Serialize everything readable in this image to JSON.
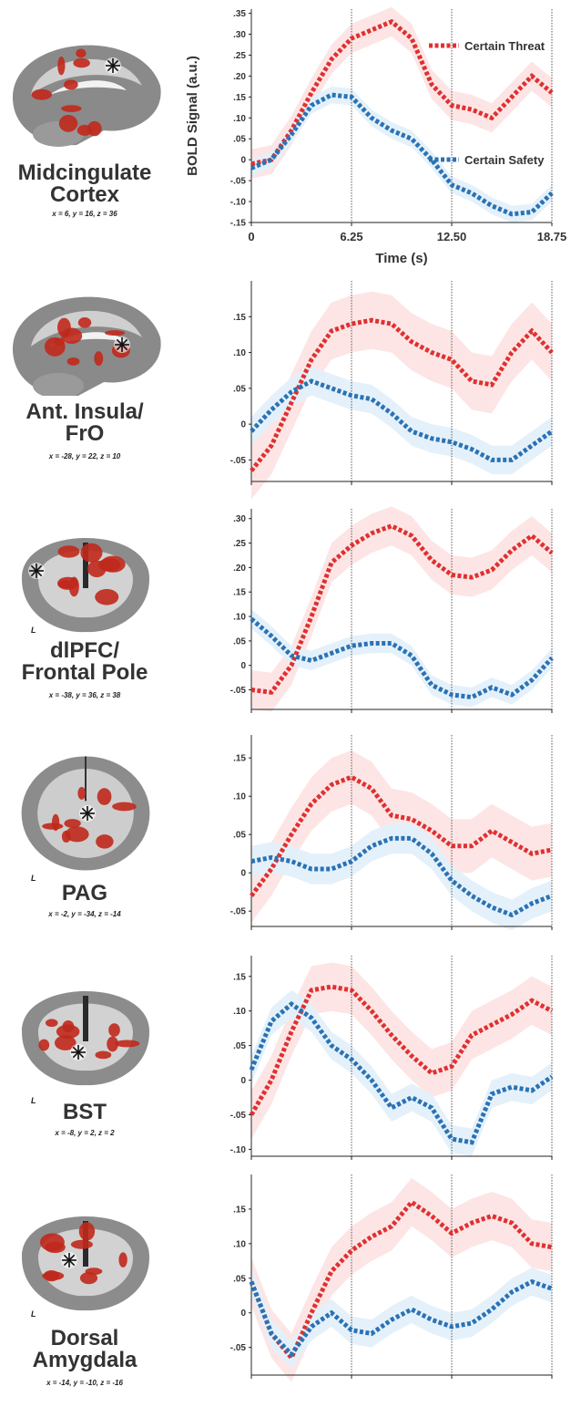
{
  "colors": {
    "threat": "#e03030",
    "threat_band": "#fde4e4",
    "safety": "#2a72b5",
    "safety_band": "#e3f0fa",
    "activation": "#c0281c"
  },
  "legend": {
    "threat": "Certain Threat",
    "safety": "Certain Safety"
  },
  "panels": [
    {
      "name_lines": [
        "Midcingulate",
        "Cortex"
      ],
      "coords": "x = 6, y = 16, z = 36",
      "view": "sagittal",
      "left_marker": ""
    },
    {
      "name_lines": [
        "Ant. Insula/",
        "FrO"
      ],
      "coords": "x = -28, y = 22, z = 10",
      "view": "sagittal",
      "left_marker": ""
    },
    {
      "name_lines": [
        "dlPFC/",
        "Frontal Pole"
      ],
      "coords": "x = -38, y = 36, z = 38",
      "view": "coronal",
      "left_marker": "L"
    },
    {
      "name_lines": [
        "PAG"
      ],
      "coords": "x = -2, y = -34, z = -14",
      "view": "axial",
      "left_marker": "L"
    },
    {
      "name_lines": [
        "BST"
      ],
      "coords": "x = -8, y = 2, z = 2",
      "view": "coronal",
      "left_marker": "L"
    },
    {
      "name_lines": [
        "Dorsal",
        "Amygdala"
      ],
      "coords": "x = -14, y = -10, z = -16",
      "view": "coronal",
      "left_marker": "L"
    }
  ],
  "chart_data": [
    {
      "type": "line",
      "ylabel": "BOLD Signal (a.u.)",
      "xlabel": "Time (s)",
      "x_ticks": [
        "0",
        "6.25",
        "12.50",
        "18.75"
      ],
      "xlim": [
        0,
        18.75
      ],
      "x": [
        0,
        1.25,
        2.5,
        3.75,
        5,
        6.25,
        7.5,
        8.75,
        10,
        11.25,
        12.5,
        13.75,
        15,
        16.25,
        17.5,
        18.75
      ],
      "ylim": [
        -0.15,
        0.36
      ],
      "y_ticks": [
        -0.15,
        -0.1,
        -0.05,
        0,
        0.05,
        0.1,
        0.15,
        0.2,
        0.25,
        0.3,
        0.35
      ],
      "y_tick_labels": [
        "-.15",
        "-.10",
        "-.05",
        "0",
        ".05",
        ".10",
        ".15",
        ".20",
        ".25",
        ".30",
        ".35"
      ],
      "series": [
        {
          "name": "Certain Threat",
          "key": "threat",
          "values": [
            -0.01,
            0.0,
            0.07,
            0.16,
            0.24,
            0.29,
            0.31,
            0.33,
            0.29,
            0.18,
            0.13,
            0.12,
            0.1,
            0.15,
            0.2,
            0.16
          ],
          "band": 0.035
        },
        {
          "name": "Certain Safety",
          "key": "safety",
          "values": [
            -0.02,
            0.0,
            0.06,
            0.13,
            0.155,
            0.15,
            0.1,
            0.07,
            0.05,
            0.0,
            -0.06,
            -0.08,
            -0.11,
            -0.13,
            -0.125,
            -0.08
          ],
          "band": 0.02
        }
      ]
    },
    {
      "type": "line",
      "ylabel": "",
      "xlabel": "",
      "x_ticks": [],
      "xlim": [
        0,
        18.75
      ],
      "x": [
        0,
        1.25,
        2.5,
        3.75,
        5,
        6.25,
        7.5,
        8.75,
        10,
        11.25,
        12.5,
        13.75,
        15,
        16.25,
        17.5,
        18.75
      ],
      "ylim": [
        -0.08,
        0.2
      ],
      "y_ticks": [
        -0.05,
        0,
        0.05,
        0.1,
        0.15
      ],
      "y_tick_labels": [
        "-.05",
        "0",
        ".05",
        ".10",
        ".15"
      ],
      "series": [
        {
          "name": "Certain Threat",
          "key": "threat",
          "values": [
            -0.065,
            -0.03,
            0.03,
            0.09,
            0.13,
            0.14,
            0.145,
            0.14,
            0.115,
            0.1,
            0.09,
            0.06,
            0.055,
            0.1,
            0.13,
            0.1
          ],
          "band": 0.04
        },
        {
          "name": "Certain Safety",
          "key": "safety",
          "values": [
            -0.01,
            0.02,
            0.045,
            0.06,
            0.05,
            0.04,
            0.035,
            0.015,
            -0.01,
            -0.02,
            -0.025,
            -0.035,
            -0.05,
            -0.05,
            -0.03,
            -0.01
          ],
          "band": 0.02
        }
      ]
    },
    {
      "type": "line",
      "ylabel": "",
      "xlabel": "",
      "x_ticks": [],
      "xlim": [
        0,
        18.75
      ],
      "x": [
        0,
        1.25,
        2.5,
        3.75,
        5,
        6.25,
        7.5,
        8.75,
        10,
        11.25,
        12.5,
        13.75,
        15,
        16.25,
        17.5,
        18.75
      ],
      "ylim": [
        -0.09,
        0.32
      ],
      "y_ticks": [
        -0.05,
        0,
        0.05,
        0.1,
        0.15,
        0.2,
        0.25,
        0.3
      ],
      "y_tick_labels": [
        "-.05",
        "0",
        ".05",
        ".10",
        ".15",
        ".20",
        ".25",
        ".30"
      ],
      "series": [
        {
          "name": "Certain Threat",
          "key": "threat",
          "values": [
            -0.05,
            -0.055,
            0.0,
            0.1,
            0.21,
            0.245,
            0.27,
            0.285,
            0.265,
            0.215,
            0.185,
            0.18,
            0.195,
            0.235,
            0.265,
            0.23
          ],
          "band": 0.04
        },
        {
          "name": "Certain Safety",
          "key": "safety",
          "values": [
            0.095,
            0.06,
            0.02,
            0.01,
            0.025,
            0.04,
            0.045,
            0.045,
            0.02,
            -0.04,
            -0.06,
            -0.065,
            -0.045,
            -0.06,
            -0.03,
            0.015
          ],
          "band": 0.02
        }
      ]
    },
    {
      "type": "line",
      "ylabel": "",
      "xlabel": "",
      "x_ticks": [],
      "xlim": [
        0,
        18.75
      ],
      "x": [
        0,
        1.25,
        2.5,
        3.75,
        5,
        6.25,
        7.5,
        8.75,
        10,
        11.25,
        12.5,
        13.75,
        15,
        16.25,
        17.5,
        18.75
      ],
      "ylim": [
        -0.07,
        0.18
      ],
      "y_ticks": [
        -0.05,
        0,
        0.05,
        0.1,
        0.15
      ],
      "y_tick_labels": [
        "-.05",
        "0",
        ".05",
        ".10",
        ".15"
      ],
      "series": [
        {
          "name": "Certain Threat",
          "key": "threat",
          "values": [
            -0.03,
            0.005,
            0.05,
            0.09,
            0.115,
            0.125,
            0.11,
            0.075,
            0.07,
            0.055,
            0.035,
            0.035,
            0.055,
            0.04,
            0.025,
            0.03
          ],
          "band": 0.035
        },
        {
          "name": "Certain Safety",
          "key": "safety",
          "values": [
            0.015,
            0.02,
            0.015,
            0.005,
            0.005,
            0.015,
            0.035,
            0.045,
            0.045,
            0.025,
            -0.01,
            -0.03,
            -0.045,
            -0.055,
            -0.04,
            -0.03
          ],
          "band": 0.02
        }
      ]
    },
    {
      "type": "line",
      "ylabel": "",
      "xlabel": "",
      "x_ticks": [],
      "xlim": [
        0,
        18.75
      ],
      "x": [
        0,
        1.25,
        2.5,
        3.75,
        5,
        6.25,
        7.5,
        8.75,
        10,
        11.25,
        12.5,
        13.75,
        15,
        16.25,
        17.5,
        18.75
      ],
      "ylim": [
        -0.11,
        0.18
      ],
      "y_ticks": [
        -0.1,
        -0.05,
        0,
        0.05,
        0.1,
        0.15
      ],
      "y_tick_labels": [
        "-.10",
        "-.05",
        "0",
        ".05",
        ".10",
        ".15"
      ],
      "series": [
        {
          "name": "Certain Threat",
          "key": "threat",
          "values": [
            -0.05,
            0.0,
            0.07,
            0.13,
            0.135,
            0.13,
            0.1,
            0.065,
            0.035,
            0.01,
            0.02,
            0.065,
            0.08,
            0.095,
            0.115,
            0.1
          ],
          "band": 0.035
        },
        {
          "name": "Certain Safety",
          "key": "safety",
          "values": [
            0.015,
            0.085,
            0.11,
            0.09,
            0.05,
            0.03,
            0.0,
            -0.04,
            -0.025,
            -0.04,
            -0.085,
            -0.09,
            -0.02,
            -0.01,
            -0.015,
            0.005
          ],
          "band": 0.02
        }
      ]
    },
    {
      "type": "line",
      "ylabel": "",
      "xlabel": "",
      "x_ticks": [],
      "xlim": [
        0,
        18.75
      ],
      "x": [
        0,
        1.25,
        2.5,
        3.75,
        5,
        6.25,
        7.5,
        8.75,
        10,
        11.25,
        12.5,
        13.75,
        15,
        16.25,
        17.5,
        18.75
      ],
      "ylim": [
        -0.09,
        0.2
      ],
      "y_ticks": [
        -0.05,
        0,
        0.05,
        0.1,
        0.15
      ],
      "y_tick_labels": [
        "-.05",
        "0",
        ".05",
        ".10",
        ".15"
      ],
      "series": [
        {
          "name": "Certain Threat",
          "key": "threat",
          "values": [
            0.045,
            -0.03,
            -0.065,
            0.0,
            0.06,
            0.09,
            0.11,
            0.125,
            0.16,
            0.14,
            0.115,
            0.13,
            0.14,
            0.13,
            0.1,
            0.095
          ],
          "band": 0.035
        },
        {
          "name": "Certain Safety",
          "key": "safety",
          "values": [
            0.045,
            -0.03,
            -0.06,
            -0.02,
            0.0,
            -0.025,
            -0.03,
            -0.01,
            0.005,
            -0.01,
            -0.02,
            -0.015,
            0.005,
            0.03,
            0.045,
            0.035
          ],
          "band": 0.02
        }
      ]
    }
  ]
}
